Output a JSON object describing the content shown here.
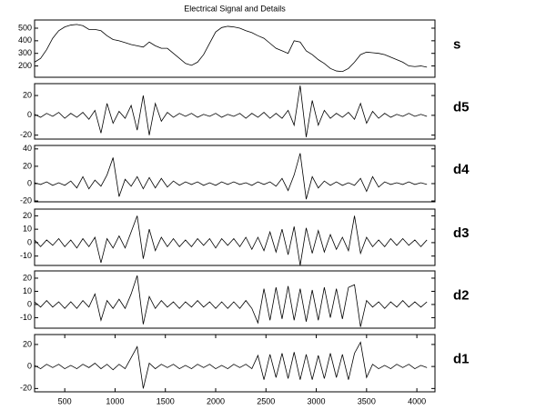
{
  "chart_data": [
    {
      "type": "line",
      "title": "Electrical Signal and Details",
      "label": "s",
      "color": "#000000",
      "x": [
        200,
        260,
        320,
        380,
        440,
        500,
        560,
        620,
        680,
        740,
        800,
        860,
        920,
        980,
        1040,
        1100,
        1160,
        1220,
        1280,
        1340,
        1400,
        1460,
        1520,
        1580,
        1640,
        1700,
        1760,
        1820,
        1880,
        1940,
        2000,
        2060,
        2120,
        2180,
        2240,
        2300,
        2360,
        2420,
        2480,
        2540,
        2600,
        2660,
        2720,
        2780,
        2840,
        2900,
        2960,
        3020,
        3080,
        3140,
        3200,
        3260,
        3320,
        3380,
        3440,
        3500,
        3560,
        3620,
        3680,
        3740,
        3800,
        3860,
        3920,
        3980,
        4040,
        4100
      ],
      "values": [
        230,
        260,
        330,
        420,
        480,
        510,
        525,
        530,
        520,
        490,
        490,
        480,
        440,
        410,
        400,
        385,
        370,
        360,
        350,
        390,
        360,
        340,
        340,
        300,
        260,
        220,
        205,
        230,
        290,
        380,
        470,
        505,
        515,
        510,
        500,
        480,
        465,
        440,
        420,
        380,
        340,
        320,
        300,
        400,
        390,
        320,
        290,
        250,
        220,
        180,
        160,
        155,
        180,
        230,
        290,
        310,
        305,
        300,
        290,
        270,
        250,
        230,
        200,
        195,
        200,
        190
      ],
      "xlim": [
        200,
        4180
      ],
      "ylim": [
        110,
        565
      ],
      "yticks": [
        200,
        300,
        400,
        500
      ]
    },
    {
      "type": "line",
      "label": "d5",
      "color": "#000000",
      "x": [
        200,
        260,
        320,
        380,
        440,
        500,
        560,
        620,
        680,
        740,
        800,
        860,
        920,
        980,
        1040,
        1100,
        1160,
        1220,
        1280,
        1340,
        1400,
        1460,
        1520,
        1580,
        1640,
        1700,
        1760,
        1820,
        1880,
        1940,
        2000,
        2060,
        2120,
        2180,
        2240,
        2300,
        2360,
        2420,
        2480,
        2540,
        2600,
        2660,
        2720,
        2780,
        2840,
        2900,
        2960,
        3020,
        3080,
        3140,
        3200,
        3260,
        3320,
        3380,
        3440,
        3500,
        3560,
        3620,
        3680,
        3740,
        3800,
        3860,
        3920,
        3980,
        4040,
        4100
      ],
      "values": [
        1,
        -2,
        2,
        -1,
        3,
        -3,
        2,
        -2,
        3,
        -4,
        5,
        -18,
        12,
        -8,
        4,
        -3,
        10,
        -15,
        20,
        -20,
        12,
        -6,
        3,
        -2,
        2,
        -1,
        2,
        -2,
        1,
        -1,
        2,
        -2,
        1,
        -1,
        2,
        -3,
        2,
        -2,
        3,
        -3,
        2,
        -3,
        5,
        -10,
        30,
        -22,
        15,
        -10,
        5,
        -3,
        2,
        -2,
        3,
        -4,
        12,
        -8,
        4,
        -3,
        2,
        -2,
        1,
        -1,
        2,
        -1,
        1,
        -1
      ],
      "xlim": [
        200,
        4180
      ],
      "ylim": [
        -24,
        32
      ],
      "yticks": [
        -20,
        0,
        20
      ]
    },
    {
      "type": "line",
      "label": "d4",
      "color": "#000000",
      "x": [
        200,
        260,
        320,
        380,
        440,
        500,
        560,
        620,
        680,
        740,
        800,
        860,
        920,
        980,
        1040,
        1100,
        1160,
        1220,
        1280,
        1340,
        1400,
        1460,
        1520,
        1580,
        1640,
        1700,
        1760,
        1820,
        1880,
        1940,
        2000,
        2060,
        2120,
        2180,
        2240,
        2300,
        2360,
        2420,
        2480,
        2540,
        2600,
        2660,
        2720,
        2780,
        2840,
        2900,
        2960,
        3020,
        3080,
        3140,
        3200,
        3260,
        3320,
        3380,
        3440,
        3500,
        3560,
        3620,
        3680,
        3740,
        3800,
        3860,
        3920,
        3980,
        4040,
        4100
      ],
      "values": [
        1,
        -1,
        2,
        -2,
        1,
        -2,
        3,
        -5,
        8,
        -6,
        4,
        -3,
        10,
        30,
        -15,
        5,
        -3,
        8,
        -6,
        7,
        -5,
        6,
        -4,
        3,
        -2,
        2,
        -1,
        2,
        -2,
        1,
        -2,
        2,
        -1,
        2,
        -1,
        1,
        -2,
        2,
        -1,
        2,
        -3,
        6,
        -8,
        10,
        35,
        -18,
        8,
        -5,
        3,
        -2,
        2,
        -2,
        1,
        -2,
        6,
        -9,
        8,
        -4,
        2,
        -1,
        1,
        -1,
        2,
        -1,
        1,
        -1
      ],
      "xlim": [
        200,
        4180
      ],
      "ylim": [
        -21,
        44
      ],
      "yticks": [
        -20,
        0,
        20,
        40
      ]
    },
    {
      "type": "line",
      "label": "d3",
      "color": "#000000",
      "x": [
        200,
        260,
        320,
        380,
        440,
        500,
        560,
        620,
        680,
        740,
        800,
        860,
        920,
        980,
        1040,
        1100,
        1160,
        1220,
        1280,
        1340,
        1400,
        1460,
        1520,
        1580,
        1640,
        1700,
        1760,
        1820,
        1880,
        1940,
        2000,
        2060,
        2120,
        2180,
        2240,
        2300,
        2360,
        2420,
        2480,
        2540,
        2600,
        2660,
        2720,
        2780,
        2840,
        2900,
        2960,
        3020,
        3080,
        3140,
        3200,
        3260,
        3320,
        3380,
        3440,
        3500,
        3560,
        3620,
        3680,
        3740,
        3800,
        3860,
        3920,
        3980,
        4040,
        4100
      ],
      "values": [
        2,
        -3,
        2,
        -2,
        3,
        -3,
        2,
        -4,
        3,
        -3,
        4,
        -15,
        3,
        -4,
        5,
        -4,
        8,
        20,
        -12,
        10,
        -6,
        4,
        -3,
        3,
        -3,
        2,
        -3,
        3,
        -2,
        3,
        -4,
        3,
        -2,
        3,
        -3,
        4,
        -5,
        4,
        -6,
        8,
        -7,
        10,
        -9,
        12,
        -17,
        11,
        -8,
        9,
        -7,
        6,
        -5,
        4,
        -6,
        20,
        -8,
        4,
        -3,
        2,
        -3,
        3,
        -2,
        3,
        -2,
        2,
        -3,
        2
      ],
      "xlim": [
        200,
        4180
      ],
      "ylim": [
        -17,
        25
      ],
      "yticks": [
        -10,
        0,
        10,
        20
      ]
    },
    {
      "type": "line",
      "label": "d2",
      "color": "#000000",
      "x": [
        200,
        260,
        320,
        380,
        440,
        500,
        560,
        620,
        680,
        740,
        800,
        860,
        920,
        980,
        1040,
        1100,
        1160,
        1220,
        1280,
        1340,
        1400,
        1460,
        1520,
        1580,
        1640,
        1700,
        1760,
        1820,
        1880,
        1940,
        2000,
        2060,
        2120,
        2180,
        2240,
        2300,
        2360,
        2420,
        2480,
        2540,
        2600,
        2660,
        2720,
        2780,
        2840,
        2900,
        2960,
        3020,
        3080,
        3140,
        3200,
        3260,
        3320,
        3380,
        3440,
        3500,
        3560,
        3620,
        3680,
        3740,
        3800,
        3860,
        3920,
        3980,
        4040,
        4100
      ],
      "values": [
        2,
        -2,
        3,
        -2,
        2,
        -3,
        2,
        -3,
        3,
        -2,
        8,
        -12,
        3,
        -3,
        4,
        -3,
        8,
        22,
        -15,
        6,
        -3,
        3,
        -2,
        2,
        -3,
        2,
        -2,
        3,
        -2,
        2,
        -3,
        2,
        -3,
        2,
        -3,
        3,
        -3,
        -14,
        12,
        -12,
        13,
        -11,
        14,
        -12,
        12,
        -13,
        11,
        -12,
        13,
        -10,
        12,
        -11,
        13,
        15,
        -17,
        3,
        -2,
        2,
        -3,
        2,
        -2,
        3,
        -2,
        2,
        -2,
        2
      ],
      "xlim": [
        200,
        4180
      ],
      "ylim": [
        -18,
        25.5
      ],
      "yticks": [
        -10,
        0,
        10,
        20
      ]
    },
    {
      "type": "line",
      "label": "d1",
      "color": "#000000",
      "x": [
        200,
        260,
        320,
        380,
        440,
        500,
        560,
        620,
        680,
        740,
        800,
        860,
        920,
        980,
        1040,
        1100,
        1160,
        1220,
        1280,
        1340,
        1400,
        1460,
        1520,
        1580,
        1640,
        1700,
        1760,
        1820,
        1880,
        1940,
        2000,
        2060,
        2120,
        2180,
        2240,
        2300,
        2360,
        2420,
        2480,
        2540,
        2600,
        2660,
        2720,
        2780,
        2840,
        2900,
        2960,
        3020,
        3080,
        3140,
        3200,
        3260,
        3320,
        3380,
        3440,
        3500,
        3560,
        3620,
        3680,
        3740,
        3800,
        3860,
        3920,
        3980,
        4040,
        4100
      ],
      "values": [
        1,
        -2,
        2,
        -1,
        2,
        -2,
        1,
        -2,
        2,
        -1,
        3,
        -2,
        2,
        -3,
        2,
        -2,
        8,
        18,
        -20,
        3,
        -2,
        2,
        -1,
        2,
        -2,
        1,
        -2,
        2,
        -1,
        2,
        -2,
        1,
        -2,
        2,
        -1,
        2,
        -2,
        10,
        -12,
        11,
        -10,
        12,
        -11,
        13,
        -12,
        11,
        -12,
        10,
        -11,
        12,
        -10,
        11,
        -12,
        12,
        22,
        -10,
        2,
        -2,
        1,
        -2,
        2,
        -1,
        2,
        -2,
        1,
        -1
      ],
      "xlim": [
        200,
        4180
      ],
      "ylim": [
        -23,
        29
      ],
      "yticks": [
        -20,
        0,
        20
      ],
      "xticks": [
        500,
        1000,
        1500,
        2000,
        2500,
        3000,
        3500,
        4000
      ]
    }
  ]
}
